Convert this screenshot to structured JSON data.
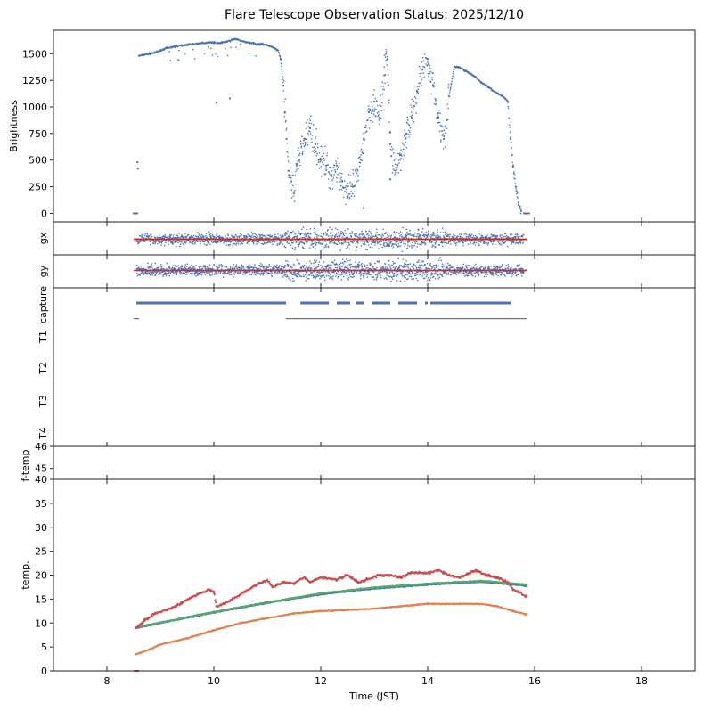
{
  "chart_data": {
    "title": "Flare Telescope Observation Status: 2025/12/10",
    "xlabel": "Time (JST)",
    "xlim": [
      7,
      19
    ],
    "x_ticks": [
      8,
      10,
      12,
      14,
      16,
      18
    ],
    "colors": {
      "blue": "#4c72b0",
      "orange": "#dd8452",
      "green": "#55a868",
      "red": "#c44e52"
    },
    "panels": [
      {
        "id": "brightness",
        "type": "scatter",
        "ylabel": "Brightness",
        "ylim": [
          -80,
          1720
        ],
        "y_ticks": [
          0,
          250,
          500,
          750,
          1000,
          1250,
          1500
        ],
        "series": [
          {
            "color": "#4c72b0",
            "points": [
              [
                8.5,
                0
              ],
              [
                8.52,
                0
              ],
              [
                8.55,
                0
              ],
              [
                8.57,
                480
              ],
              [
                8.58,
                420
              ],
              [
                8.6,
                1480
              ],
              [
                8.7,
                1490
              ],
              [
                8.8,
                1500
              ],
              [
                8.9,
                1510
              ],
              [
                9.0,
                1530
              ],
              [
                9.1,
                1550
              ],
              [
                9.2,
                1560
              ],
              [
                9.3,
                1570
              ],
              [
                9.4,
                1575
              ],
              [
                9.5,
                1585
              ],
              [
                9.6,
                1590
              ],
              [
                9.7,
                1595
              ],
              [
                9.8,
                1600
              ],
              [
                9.9,
                1605
              ],
              [
                10.0,
                1605
              ],
              [
                10.1,
                1600
              ],
              [
                10.2,
                1610
              ],
              [
                10.3,
                1620
              ],
              [
                10.4,
                1640
              ],
              [
                10.5,
                1620
              ],
              [
                10.6,
                1610
              ],
              [
                10.7,
                1600
              ],
              [
                10.8,
                1590
              ],
              [
                10.9,
                1590
              ],
              [
                11.0,
                1580
              ],
              [
                11.1,
                1560
              ],
              [
                11.2,
                1530
              ],
              [
                11.25,
                1450
              ],
              [
                11.3,
                1200
              ],
              [
                11.33,
                950
              ],
              [
                11.36,
                700
              ],
              [
                11.4,
                400
              ],
              [
                11.45,
                300
              ],
              [
                11.5,
                200
              ],
              [
                11.55,
                450
              ],
              [
                11.6,
                500
              ],
              [
                11.7,
                700
              ],
              [
                11.8,
                800
              ],
              [
                11.9,
                650
              ],
              [
                12.0,
                500
              ],
              [
                12.1,
                450
              ],
              [
                12.2,
                350
              ],
              [
                12.3,
                450
              ],
              [
                12.4,
                300
              ],
              [
                12.5,
                150
              ],
              [
                12.6,
                250
              ],
              [
                12.7,
                350
              ],
              [
                12.8,
                700
              ],
              [
                12.9,
                950
              ],
              [
                13.0,
                1050
              ],
              [
                13.1,
                900
              ],
              [
                13.2,
                1300
              ],
              [
                13.22,
                1500
              ],
              [
                13.25,
                1450
              ],
              [
                13.3,
                650
              ],
              [
                13.4,
                400
              ],
              [
                13.5,
                550
              ],
              [
                13.6,
                750
              ],
              [
                13.7,
                900
              ],
              [
                13.8,
                1150
              ],
              [
                13.9,
                1350
              ],
              [
                14.0,
                1450
              ],
              [
                14.1,
                1200
              ],
              [
                14.2,
                900
              ],
              [
                14.3,
                700
              ],
              [
                14.4,
                1100
              ],
              [
                14.5,
                1380
              ],
              [
                14.6,
                1370
              ],
              [
                14.7,
                1340
              ],
              [
                14.8,
                1310
              ],
              [
                14.9,
                1280
              ],
              [
                15.0,
                1230
              ],
              [
                15.1,
                1200
              ],
              [
                15.2,
                1160
              ],
              [
                15.3,
                1130
              ],
              [
                15.4,
                1100
              ],
              [
                15.45,
                1080
              ],
              [
                15.5,
                1050
              ],
              [
                15.55,
                700
              ],
              [
                15.6,
                450
              ],
              [
                15.65,
                250
              ],
              [
                15.7,
                80
              ],
              [
                15.75,
                20
              ],
              [
                15.8,
                0
              ],
              [
                15.85,
                0
              ],
              [
                10.05,
                1040
              ],
              [
                10.3,
                1080
              ],
              [
                12.8,
                50
              ],
              [
                13.3,
                320
              ]
            ]
          }
        ]
      },
      {
        "id": "gx",
        "type": "scatter",
        "ylabel": "gx",
        "ref_line_color": "#d62728",
        "range": [
          8.55,
          15.8
        ]
      },
      {
        "id": "gy",
        "type": "scatter",
        "ylabel": "gy",
        "ref_line_color": "#d62728",
        "range": [
          8.55,
          15.8
        ]
      },
      {
        "id": "capture",
        "type": "event",
        "ylabels": [
          "capture",
          "T1",
          "T2",
          "T3",
          "T4"
        ],
        "capture_range": [
          8.55,
          15.55
        ],
        "capture_gaps": [
          [
            11.35,
            11.62
          ],
          [
            12.15,
            12.3
          ],
          [
            12.55,
            12.65
          ],
          [
            12.8,
            12.95
          ],
          [
            13.3,
            13.45
          ],
          [
            13.8,
            13.95
          ],
          [
            14.0,
            14.05
          ]
        ],
        "t1_segments": [
          [
            8.5,
            8.6
          ],
          [
            11.35,
            15.85
          ]
        ]
      },
      {
        "id": "ftemp",
        "type": "line",
        "ylabel": "f-temp",
        "y_ticks": [
          45,
          46
        ],
        "ylim": [
          44.4,
          46.2
        ]
      },
      {
        "id": "temp",
        "type": "scatter",
        "ylabel": "temp.",
        "ylim": [
          0,
          40
        ],
        "y_ticks": [
          0,
          5,
          10,
          15,
          20,
          25,
          30,
          35,
          40
        ],
        "series": [
          {
            "color": "#4c72b0",
            "points": [
              [
                8.55,
                9
              ],
              [
                9,
                10
              ],
              [
                10,
                12.2
              ],
              [
                11,
                14.2
              ],
              [
                12,
                16
              ],
              [
                13,
                17.2
              ],
              [
                14,
                18
              ],
              [
                15,
                18.6
              ],
              [
                15.85,
                17.8
              ]
            ]
          },
          {
            "color": "#55a868",
            "points": [
              [
                8.55,
                9.1
              ],
              [
                9,
                10.1
              ],
              [
                10,
                12.3
              ],
              [
                11,
                14.3
              ],
              [
                12,
                16.2
              ],
              [
                13,
                17.4
              ],
              [
                14,
                18.2
              ],
              [
                15,
                18.8
              ],
              [
                15.85,
                18
              ]
            ]
          },
          {
            "color": "#dd8452",
            "points": [
              [
                8.55,
                3.5
              ],
              [
                8.8,
                4.5
              ],
              [
                9,
                5.5
              ],
              [
                9.5,
                6.8
              ],
              [
                10,
                8.5
              ],
              [
                10.5,
                10
              ],
              [
                11,
                11
              ],
              [
                11.5,
                12
              ],
              [
                12,
                12.5
              ],
              [
                12.5,
                12.7
              ],
              [
                13,
                13
              ],
              [
                13.5,
                13.5
              ],
              [
                14,
                14
              ],
              [
                14.5,
                14
              ],
              [
                15,
                14
              ],
              [
                15.3,
                13.5
              ],
              [
                15.6,
                12.5
              ],
              [
                15.85,
                11.8
              ]
            ]
          },
          {
            "color": "#c44e52",
            "points": [
              [
                8.55,
                9
              ],
              [
                8.7,
                10.5
              ],
              [
                8.9,
                12
              ],
              [
                9.2,
                13
              ],
              [
                9.6,
                15.5
              ],
              [
                9.9,
                17
              ],
              [
                10.0,
                16.5
              ],
              [
                10.05,
                13.5
              ],
              [
                10.2,
                14
              ],
              [
                10.5,
                16
              ],
              [
                10.8,
                18
              ],
              [
                11.0,
                19
              ],
              [
                11.1,
                17.5
              ],
              [
                11.3,
                18.5
              ],
              [
                11.5,
                18.3
              ],
              [
                11.7,
                19.5
              ],
              [
                11.8,
                18.5
              ],
              [
                12.0,
                19.5
              ],
              [
                12.3,
                19
              ],
              [
                12.5,
                20
              ],
              [
                12.7,
                18.5
              ],
              [
                12.9,
                19.2
              ],
              [
                13.1,
                20
              ],
              [
                13.3,
                20
              ],
              [
                13.5,
                19.5
              ],
              [
                13.7,
                20.5
              ],
              [
                14.0,
                20.5
              ],
              [
                14.2,
                21
              ],
              [
                14.4,
                20
              ],
              [
                14.6,
                19.5
              ],
              [
                14.9,
                21
              ],
              [
                15.1,
                20
              ],
              [
                15.3,
                19.5
              ],
              [
                15.5,
                18.5
              ],
              [
                15.6,
                17
              ],
              [
                15.7,
                16.5
              ],
              [
                15.85,
                15.5
              ]
            ]
          }
        ]
      }
    ]
  }
}
